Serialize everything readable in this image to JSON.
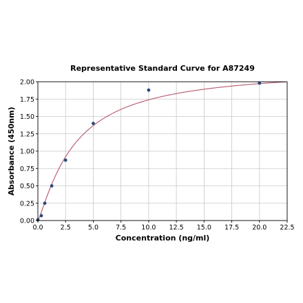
{
  "chart_data": {
    "type": "scatter",
    "title": "Representative Standard Curve for A87249",
    "xlabel": "Concentration (ng/ml)",
    "ylabel": "Absorbance (450nm)",
    "xlim": [
      0,
      22.5
    ],
    "ylim": [
      0,
      2.0
    ],
    "xticks": [
      "0.0",
      "2.5",
      "5.0",
      "7.5",
      "10.0",
      "12.5",
      "15.0",
      "17.5",
      "20.0",
      "22.5"
    ],
    "yticks": [
      "0.00",
      "0.25",
      "0.50",
      "0.75",
      "1.00",
      "1.25",
      "1.50",
      "1.75",
      "2.00"
    ],
    "grid": true,
    "points": {
      "x": [
        0,
        0.313,
        0.625,
        1.25,
        2.5,
        5,
        10,
        20
      ],
      "y": [
        0.01,
        0.07,
        0.25,
        0.5,
        0.87,
        1.4,
        1.88,
        1.98
      ]
    },
    "fit_curve": {
      "type": "4PL",
      "bottom": 0.0,
      "top": 2.2,
      "ec50": 3.3,
      "slope": 1.2
    },
    "colors": {
      "points": "#2d4a7a",
      "curve": "#b5566a",
      "grid": "#c8c8c8"
    }
  }
}
